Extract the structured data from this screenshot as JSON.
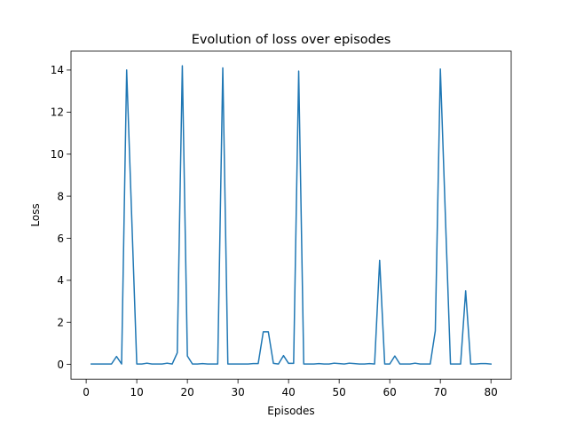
{
  "chart_data": {
    "type": "line",
    "title": "Evolution of loss over episodes",
    "xlabel": "Episodes",
    "ylabel": "Loss",
    "xlim": [
      -3,
      84
    ],
    "ylim": [
      -0.7,
      14.9
    ],
    "xticks": [
      0,
      10,
      20,
      30,
      40,
      50,
      60,
      70,
      80
    ],
    "yticks": [
      0,
      2,
      4,
      6,
      8,
      10,
      12,
      14
    ],
    "grid": false,
    "legend": "none",
    "series": [
      {
        "color": "#1f77b4",
        "x": [
          1,
          2,
          3,
          4,
          5,
          6,
          7,
          8,
          9,
          10,
          11,
          12,
          13,
          14,
          15,
          16,
          17,
          18,
          19,
          20,
          21,
          22,
          23,
          24,
          25,
          26,
          27,
          28,
          29,
          30,
          31,
          32,
          33,
          34,
          35,
          36,
          37,
          38,
          39,
          40,
          41,
          42,
          43,
          44,
          45,
          46,
          47,
          48,
          49,
          50,
          51,
          52,
          53,
          54,
          55,
          56,
          57,
          58,
          59,
          60,
          61,
          62,
          63,
          64,
          65,
          66,
          67,
          68,
          69,
          70,
          71,
          72,
          73,
          74,
          75,
          76,
          77,
          78,
          79,
          80
        ],
        "values": [
          0.02,
          0.02,
          0.02,
          0.02,
          0.02,
          0.38,
          0.02,
          14.0,
          7.0,
          0.02,
          0.02,
          0.06,
          0.02,
          0.02,
          0.02,
          0.06,
          0.02,
          0.55,
          14.2,
          0.4,
          0.02,
          0.02,
          0.04,
          0.02,
          0.02,
          0.02,
          14.1,
          0.02,
          0.02,
          0.02,
          0.02,
          0.02,
          0.04,
          0.04,
          1.55,
          1.55,
          0.05,
          0.02,
          0.42,
          0.05,
          0.05,
          13.95,
          0.02,
          0.02,
          0.02,
          0.04,
          0.02,
          0.02,
          0.06,
          0.04,
          0.02,
          0.06,
          0.04,
          0.02,
          0.02,
          0.04,
          0.02,
          4.95,
          0.02,
          0.02,
          0.4,
          0.02,
          0.02,
          0.02,
          0.06,
          0.02,
          0.02,
          0.02,
          1.6,
          14.05,
          7.0,
          0.02,
          0.02,
          0.02,
          3.5,
          0.02,
          0.02,
          0.04,
          0.04,
          0.02
        ]
      }
    ]
  }
}
